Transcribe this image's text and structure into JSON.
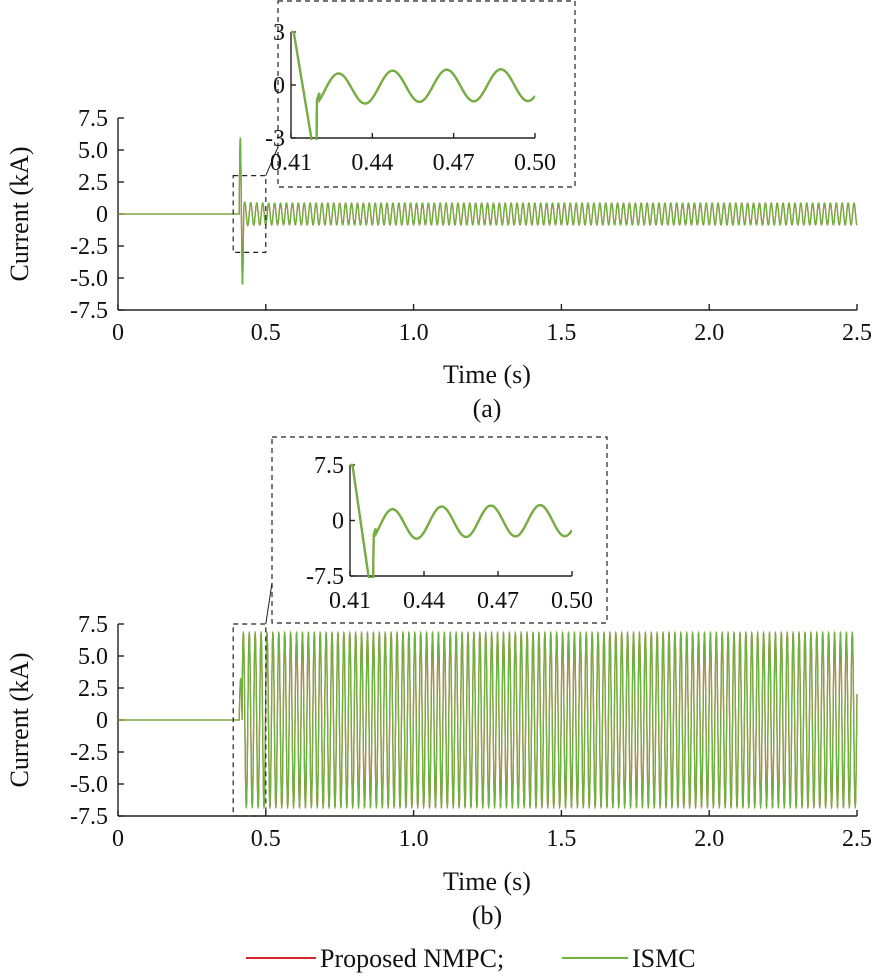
{
  "chart_data": [
    {
      "type": "line",
      "panel_label": "(a)",
      "xlabel": "Time (s)",
      "ylabel": "Current (kA)",
      "xlim": [
        0,
        2.5
      ],
      "ylim": [
        -7.5,
        7.5
      ],
      "xticks": [
        "0",
        "0.5",
        "1.0",
        "1.5",
        "2.0",
        "2.5"
      ],
      "yticks": [
        "7.5",
        "5.0",
        "2.5",
        "0",
        "-2.5",
        "-5.0",
        "-7.5"
      ],
      "series": [
        {
          "name": "Proposed NMPC",
          "color": "#d62728",
          "shape": "fault at 0.41 s; transient spikes ±6 kA, then steady ~0.8 kA amplitude, 50 Hz"
        },
        {
          "name": "ISMC",
          "color": "#6db33f",
          "shape": "nearly identical to Proposed NMPC"
        }
      ],
      "zoom_region": {
        "x": [
          0.41,
          0.5
        ],
        "y": [
          -3,
          3
        ]
      },
      "inset": {
        "xlim": [
          0.41,
          0.5
        ],
        "ylim": [
          -3,
          3
        ],
        "xticks": [
          "0.41",
          "0.44",
          "0.47",
          "0.50"
        ],
        "yticks": [
          "3",
          "0",
          "-3"
        ]
      }
    },
    {
      "type": "line",
      "panel_label": "(b)",
      "xlabel": "Time (s)",
      "ylabel": "Current (kA)",
      "xlim": [
        0,
        2.5
      ],
      "ylim": [
        -7.5,
        7.5
      ],
      "xticks": [
        "0",
        "0.5",
        "1.0",
        "1.5",
        "2.0",
        "2.5"
      ],
      "yticks": [
        "7.5",
        "5.0",
        "2.5",
        "0",
        "-2.5",
        "-5.0",
        "-7.5"
      ],
      "series": [
        {
          "name": "Proposed NMPC",
          "color": "#d62728",
          "shape": "zero until 0.41 s, then ~6.8 kA amplitude 50 Hz oscillation"
        },
        {
          "name": "ISMC",
          "color": "#6db33f",
          "shape": "nearly identical to Proposed NMPC"
        }
      ],
      "zoom_region": {
        "x": [
          0.41,
          0.5
        ],
        "y": [
          -7.5,
          7.5
        ]
      },
      "inset": {
        "xlim": [
          0.41,
          0.5
        ],
        "ylim": [
          -7.5,
          7.5
        ],
        "xticks": [
          "0.41",
          "0.44",
          "0.47",
          "0.50"
        ],
        "yticks": [
          "7.5",
          "0",
          "-7.5"
        ]
      }
    }
  ],
  "legend": {
    "items": [
      {
        "label": "Proposed NMPC;",
        "color": "#d62728"
      },
      {
        "label": "ISMC",
        "color": "#6db33f"
      }
    ]
  }
}
